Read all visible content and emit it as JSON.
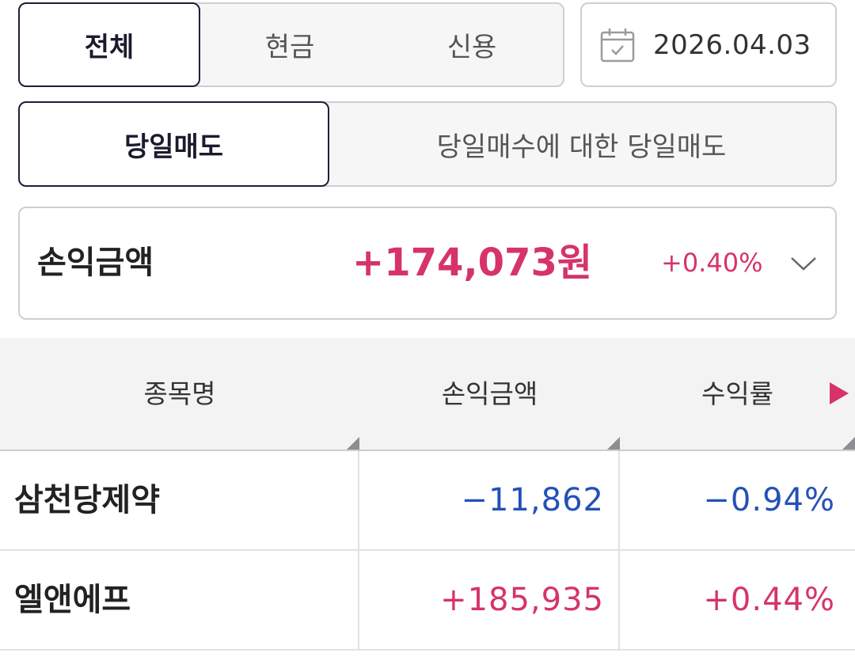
{
  "account_type_tabs": [
    {
      "label": "전체",
      "active": true
    },
    {
      "label": "현금",
      "active": false
    },
    {
      "label": "신용",
      "active": false
    }
  ],
  "date": {
    "value": "2026.04.03",
    "icon": "calendar-icon"
  },
  "sell_type_tabs": [
    {
      "label": "당일매도",
      "active": true
    },
    {
      "label": "당일매수에 대한 당일매도",
      "active": false
    }
  ],
  "summary": {
    "label": "손익금액",
    "amount": "+174,073원",
    "rate": "+0.40%",
    "expand_icon": "chevron-down-icon"
  },
  "table": {
    "headers": [
      "종목명",
      "손익금액",
      "수익률"
    ],
    "more_columns_icon": "play-icon",
    "rows": [
      {
        "name": "삼천당제약",
        "pnl": "−11,862",
        "rate": "−0.94%",
        "sign": "negative"
      },
      {
        "name": "엘앤에프",
        "pnl": "+185,935",
        "rate": "+0.44%",
        "sign": "positive"
      }
    ]
  },
  "colors": {
    "positive": "#d6336c",
    "negative": "#2451b8",
    "active_border": "#1c1f3c"
  }
}
